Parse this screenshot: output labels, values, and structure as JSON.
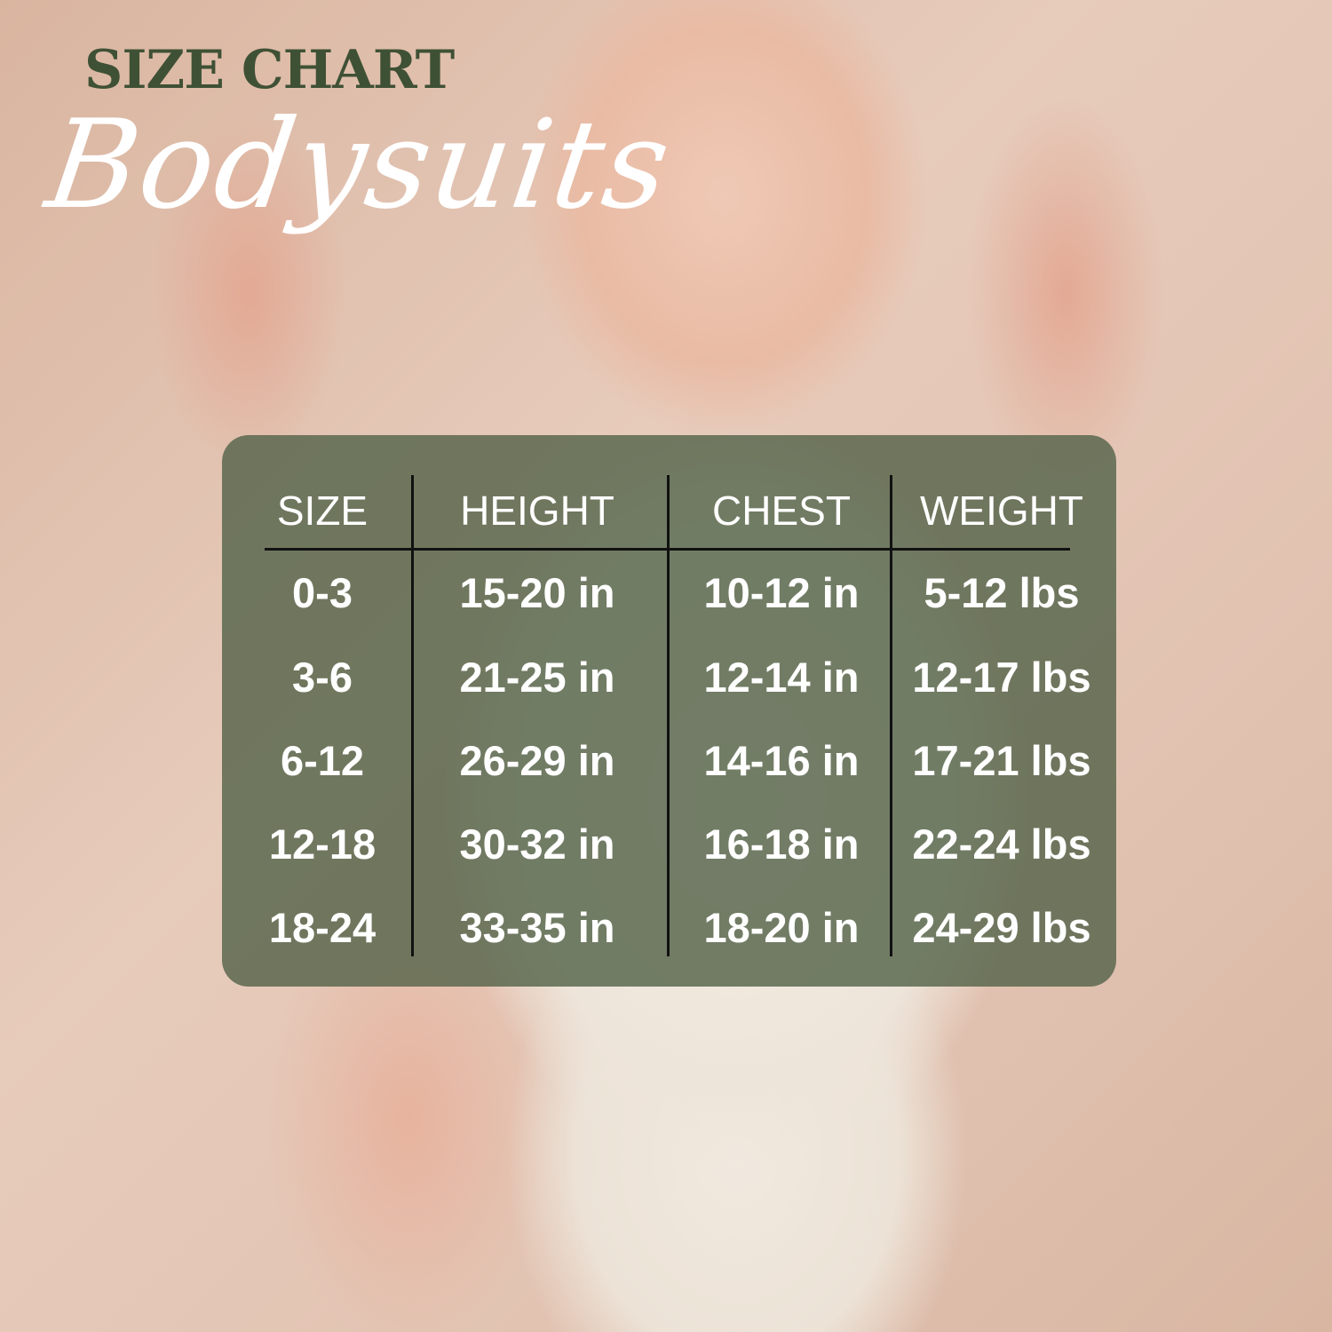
{
  "title": "SIZE CHART",
  "subtitle": "Bodysuits",
  "colors": {
    "title": "#3f5135",
    "panel": "#56644a",
    "text": "#ffffff"
  },
  "table": {
    "headers": [
      "SIZE",
      "HEIGHT",
      "CHEST",
      "WEIGHT"
    ],
    "rows": [
      [
        "0-3",
        "15-20 in",
        "10-12 in",
        "5-12 lbs"
      ],
      [
        "3-6",
        "21-25 in",
        "12-14 in",
        "12-17 lbs"
      ],
      [
        "6-12",
        "26-29 in",
        "14-16 in",
        "17-21 lbs"
      ],
      [
        "12-18",
        "30-32 in",
        "16-18 in",
        "22-24 lbs"
      ],
      [
        "18-24",
        "33-35 in",
        "18-20 in",
        "24-29 lbs"
      ]
    ]
  }
}
